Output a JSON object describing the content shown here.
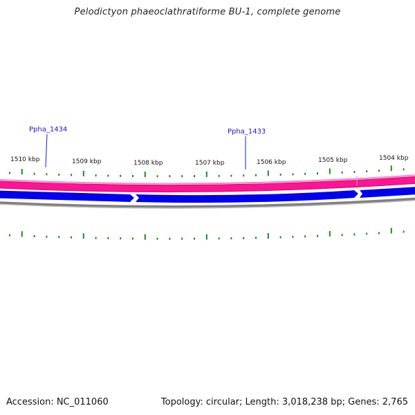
{
  "title": "Pelodictyon phaeoclathratiforme BU-1, complete genome",
  "accession_line": "Accession: NC_011060",
  "summary_line": "Topology: circular; Length: 3,018,238 bp; Genes: 2,765",
  "scale_labels": [
    "1510 kbp",
    "1509 kbp",
    "1508 kbp",
    "1507 kbp",
    "1506 kbp",
    "1505 kbp",
    "1504 kbp"
  ],
  "gene_labels": [
    "Ppha_1434",
    "Ppha_1433"
  ],
  "colors": {
    "pink_track": "#ff1493",
    "pink_edge": "#c0106e",
    "blue_track": "#0000ee",
    "gray_track": "#808080",
    "tick": "#1a8a1a",
    "gene_label": "#1a1acc"
  }
}
